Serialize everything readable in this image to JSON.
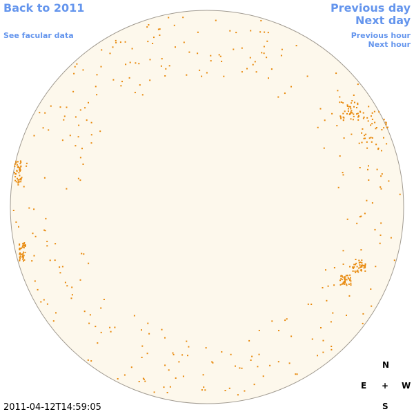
{
  "nav": {
    "back": "Back to 2011",
    "facular": "See facular data",
    "previous_day": "Previous day",
    "next_day": "Next day",
    "previous_hour": "Previous hour",
    "next_hour": "Next hour"
  },
  "timestamp": "2011-04-12T14:59:05",
  "compass": {
    "north": "N",
    "east": "E",
    "center": "+",
    "west": "W",
    "south": "S"
  }
}
